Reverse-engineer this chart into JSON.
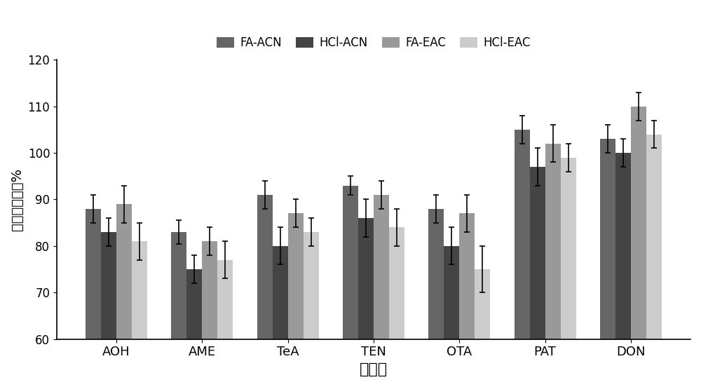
{
  "categories": [
    "AOH",
    "AME",
    "TeA",
    "TEN",
    "OTA",
    "PAT",
    "DON"
  ],
  "series": {
    "FA-ACN": [
      88,
      83,
      91,
      93,
      88,
      105,
      103
    ],
    "HCl-ACN": [
      83,
      75,
      80,
      86,
      80,
      97,
      100
    ],
    "FA-EAC": [
      89,
      81,
      87,
      91,
      87,
      102,
      110
    ],
    "HCl-EAC": [
      81,
      77,
      83,
      84,
      75,
      99,
      104
    ]
  },
  "errors": {
    "FA-ACN": [
      3,
      2.5,
      3,
      2,
      3,
      3,
      3
    ],
    "HCl-ACN": [
      3,
      3,
      4,
      4,
      4,
      4,
      3
    ],
    "FA-EAC": [
      4,
      3,
      3,
      3,
      4,
      4,
      3
    ],
    "HCl-EAC": [
      4,
      4,
      3,
      4,
      5,
      3,
      3
    ]
  },
  "colors": {
    "FA-ACN": "#666666",
    "HCl-ACN": "#444444",
    "FA-EAC": "#999999",
    "HCl-EAC": "#cccccc"
  },
  "ylim": [
    60,
    120
  ],
  "yticks": [
    60,
    70,
    80,
    90,
    100,
    110,
    120
  ],
  "ylabel": "提取回收率，%",
  "xlabel": "化合物",
  "bar_width": 0.18,
  "background_color": "#ffffff"
}
